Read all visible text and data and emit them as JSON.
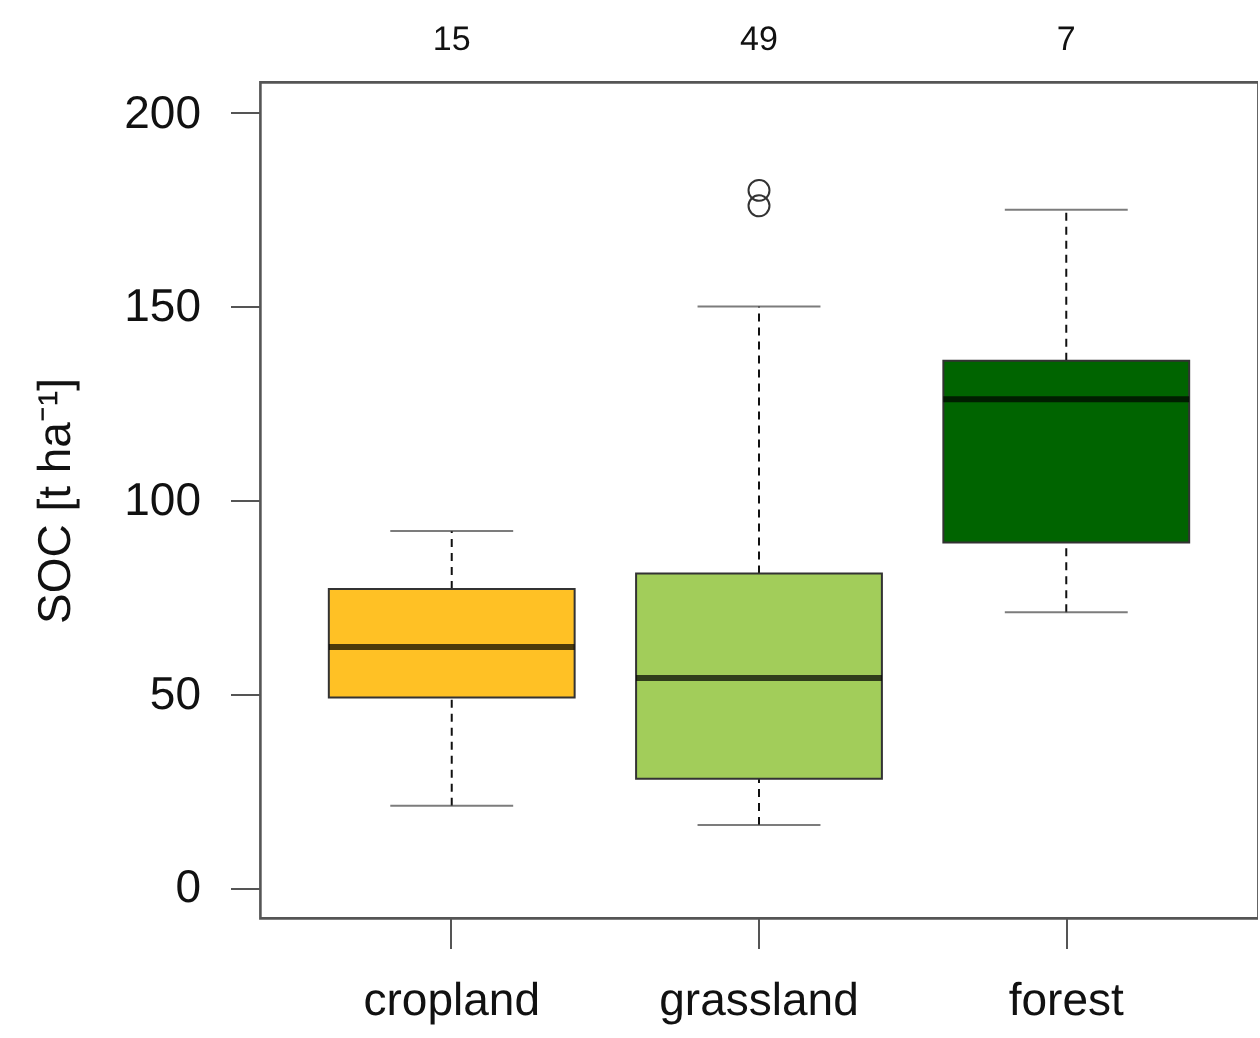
{
  "chart_data": {
    "type": "box",
    "ylabel": "SOC [t ha⁻¹]",
    "categories": [
      "cropland",
      "grassland",
      "forest"
    ],
    "colors": [
      "#FFC125",
      "#A2CD5A",
      "#006400"
    ],
    "boxes": [
      {
        "low": 21,
        "q1": 49,
        "median": 62,
        "q3": 77,
        "high": 92
      },
      {
        "low": 16,
        "q1": 28,
        "median": 54,
        "q3": 81,
        "high": 150,
        "outliers": [
          176,
          180
        ]
      },
      {
        "low": 71,
        "q1": 89,
        "median": 126,
        "q3": 136,
        "high": 175
      }
    ],
    "ylim": [
      -8,
      208
    ],
    "yticks": [
      0,
      50,
      100,
      150,
      200
    ],
    "annotations": [
      "15",
      "49",
      "7"
    ]
  }
}
